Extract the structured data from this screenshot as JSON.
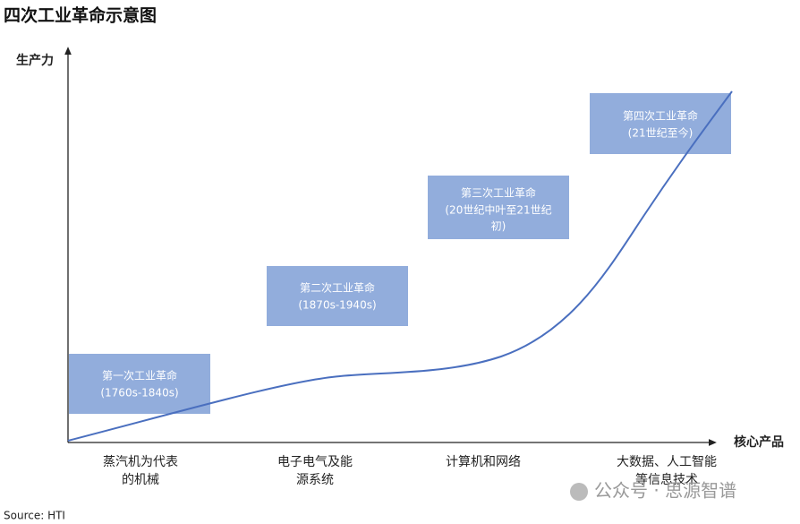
{
  "title": "四次工业革命示意图",
  "y_axis_label": "生产力",
  "x_axis_label": "核心产品",
  "stages": [
    {
      "lines": [
        "第一次工业革命",
        "(1760s-1840s)"
      ]
    },
    {
      "lines": [
        "第二次工业革命",
        "(1870s-1940s)"
      ]
    },
    {
      "lines": [
        "第三次工业革命",
        "(20世纪中叶至21世纪",
        "初)"
      ]
    },
    {
      "lines": [
        "第四次工业革命",
        "(21世纪至今)"
      ]
    }
  ],
  "products": [
    {
      "lines": [
        "蒸汽机为代表",
        "的机械"
      ]
    },
    {
      "lines": [
        "电子电气及能",
        "源系统"
      ]
    },
    {
      "lines": [
        "计算机和网络"
      ]
    },
    {
      "lines": [
        "大数据、人工智能",
        "等信息技术"
      ]
    }
  ],
  "source": "Source: HTI",
  "watermark": "公众号 · 思源智谱"
}
